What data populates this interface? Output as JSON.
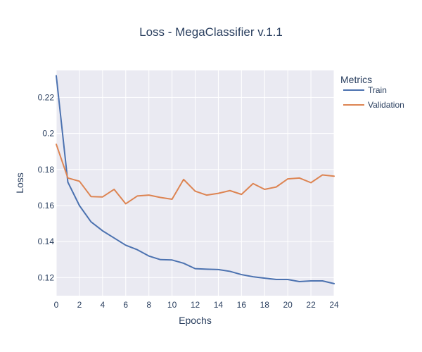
{
  "chart_data": {
    "type": "line",
    "title": "Loss - MegaClassifier v.1.1",
    "xlabel": "Epochs",
    "ylabel": "Loss",
    "xlim": [
      0,
      24
    ],
    "ylim": [
      0.11,
      0.235
    ],
    "x_ticks": [
      0,
      2,
      4,
      6,
      8,
      10,
      12,
      14,
      16,
      18,
      20,
      22,
      24
    ],
    "y_ticks": [
      0.12,
      0.14,
      0.16,
      0.18,
      0.2,
      0.22
    ],
    "y_tick_labels": [
      "0.12",
      "0.14",
      "0.16",
      "0.18",
      "0.2",
      "0.22"
    ],
    "grid": true,
    "legend": {
      "title": "Metrics",
      "position": "right"
    },
    "x": [
      0,
      1,
      2,
      3,
      4,
      5,
      6,
      7,
      8,
      9,
      10,
      11,
      12,
      13,
      14,
      15,
      16,
      17,
      18,
      19,
      20,
      21,
      22,
      23,
      24
    ],
    "series": [
      {
        "name": "Train",
        "color": "#4c72b0",
        "values": [
          0.232,
          0.173,
          0.16,
          0.151,
          0.146,
          0.142,
          0.138,
          0.1355,
          0.132,
          0.13,
          0.1298,
          0.128,
          0.125,
          0.1247,
          0.1245,
          0.1235,
          0.1217,
          0.1205,
          0.1197,
          0.119,
          0.119,
          0.1178,
          0.1182,
          0.1182,
          0.1167
        ]
      },
      {
        "name": "Validation",
        "color": "#dd8452",
        "values": [
          0.194,
          0.1753,
          0.1735,
          0.165,
          0.1648,
          0.169,
          0.161,
          0.1653,
          0.1658,
          0.1645,
          0.1635,
          0.1745,
          0.168,
          0.1658,
          0.1668,
          0.1683,
          0.1662,
          0.1722,
          0.169,
          0.1703,
          0.1748,
          0.1753,
          0.1727,
          0.177,
          0.1763
        ]
      }
    ]
  }
}
